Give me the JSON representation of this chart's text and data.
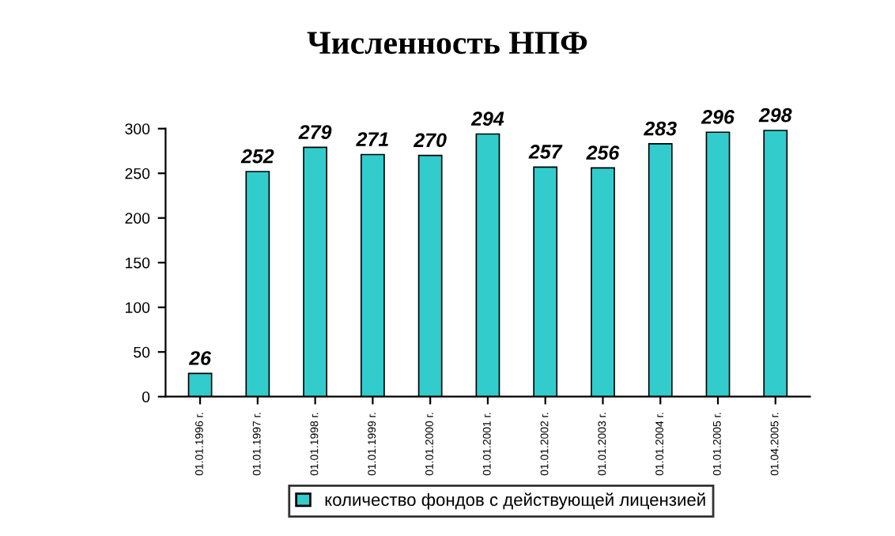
{
  "chart_data": {
    "type": "bar",
    "title": "Численность НПФ",
    "categories": [
      "01.01.1996 г.",
      "01.01.1997 г.",
      "01.01.1998 г.",
      "01.01.1999 г.",
      "01.01.2000 г.",
      "01.01.2001 г.",
      "01.01.2002 г.",
      "01.01.2003 г.",
      "01.01.2004 г.",
      "01.01.2005 г.",
      "01.04.2005 г."
    ],
    "series": [
      {
        "name": "количество фондов с действующей лицензией",
        "color": "#33cccc",
        "values": [
          26,
          252,
          279,
          271,
          270,
          294,
          257,
          256,
          283,
          296,
          298
        ]
      }
    ],
    "ylim": [
      0,
      300
    ],
    "yticks": [
      0,
      50,
      100,
      150,
      200,
      250,
      300
    ],
    "data_labels": true,
    "legend": "bottom",
    "grid": false
  }
}
